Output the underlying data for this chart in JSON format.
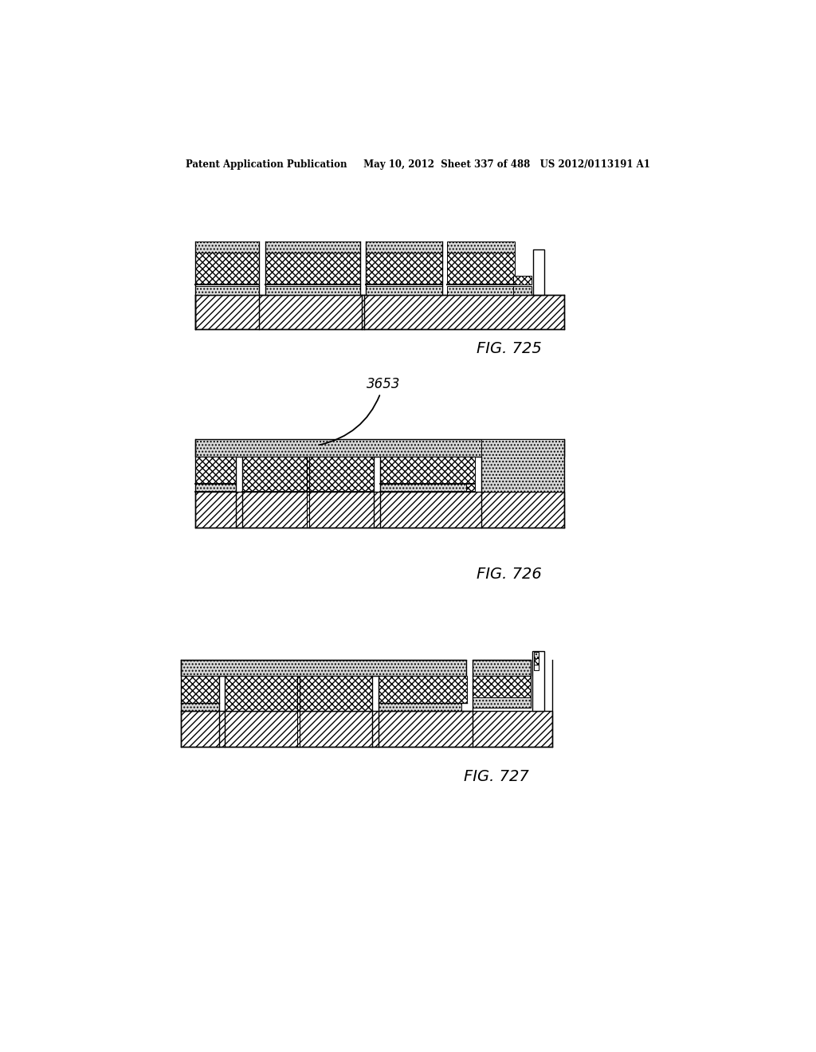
{
  "bg_color": "#ffffff",
  "header_text": "Patent Application Publication     May 10, 2012  Sheet 337 of 488   US 2012/0113191 A1",
  "fig725_label": "FIG. 725",
  "fig726_label": "FIG. 726",
  "fig727_label": "FIG. 727",
  "label_3653": "3653"
}
